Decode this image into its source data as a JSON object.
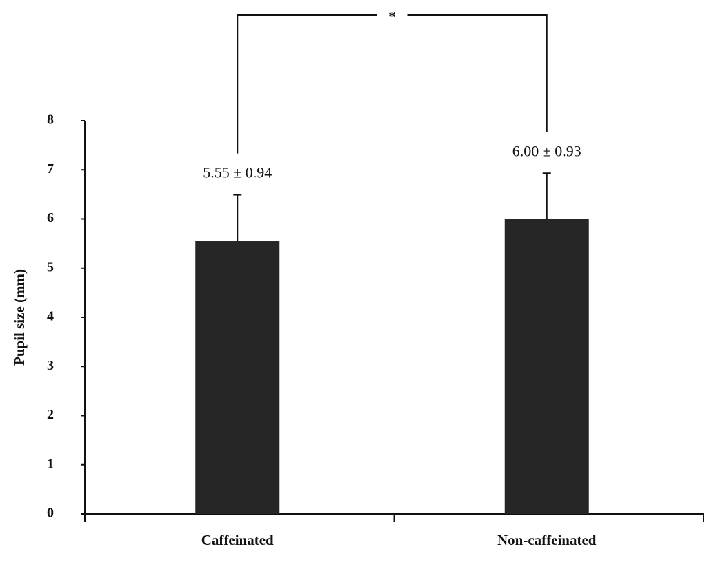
{
  "chart_data": {
    "type": "bar",
    "y_label": "Pupil size (mm)",
    "categories": [
      "Caffeinated",
      "Non-caffeinated"
    ],
    "values": [
      5.55,
      6.0
    ],
    "errors": [
      0.94,
      0.93
    ],
    "value_labels": [
      "5.55 ± 0.94",
      "6.00 ± 0.93"
    ],
    "annotation": "*",
    "color": "#262626",
    "ylim": [
      0,
      8
    ],
    "yticks": [
      0,
      1,
      2,
      3,
      4,
      5,
      6,
      7,
      8
    ]
  }
}
